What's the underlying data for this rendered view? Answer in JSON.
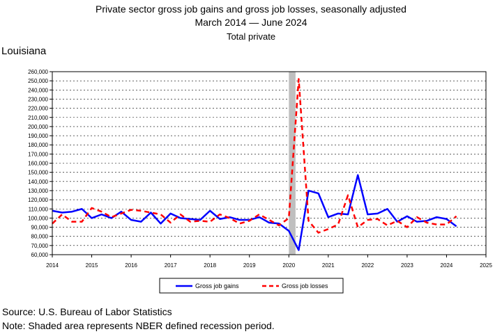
{
  "title": "Private sector gross job gains and gross job losses, seasonally adjusted",
  "date_range": "March 2014  — June 2024",
  "subtitle": "Total private",
  "region": "Louisiana",
  "source": "Source: U.S. Bureau of Labor Statistics",
  "note": "Note: Shaded area represents NBER defined recession period.",
  "colors": {
    "gains": "#0000ff",
    "losses": "#ff0000",
    "recession": "#bfbfbf"
  },
  "chart_data": {
    "type": "line",
    "xlim": [
      2014,
      2025
    ],
    "ylim": [
      60000,
      260000
    ],
    "x_ticks": [
      "2014",
      "2015",
      "2016",
      "2017",
      "2018",
      "2019",
      "2020",
      "2021",
      "2022",
      "2023",
      "2024",
      "2025"
    ],
    "y_ticks": [
      "60,000",
      "70,000",
      "80,000",
      "90,000",
      "100,000",
      "110,000",
      "120,000",
      "130,000",
      "140,000",
      "150,000",
      "160,000",
      "170,000",
      "180,000",
      "190,000",
      "200,000",
      "210,000",
      "220,000",
      "230,000",
      "240,000",
      "250,000",
      "260,000"
    ],
    "recession": [
      2020.0,
      2020.17
    ],
    "grid": "horizontal",
    "legend_position": "bottom",
    "x": [
      2014.0,
      2014.25,
      2014.5,
      2014.75,
      2015.0,
      2015.25,
      2015.5,
      2015.75,
      2016.0,
      2016.25,
      2016.5,
      2016.75,
      2017.0,
      2017.25,
      2017.5,
      2017.75,
      2018.0,
      2018.25,
      2018.5,
      2018.75,
      2019.0,
      2019.25,
      2019.5,
      2019.75,
      2020.0,
      2020.25,
      2020.5,
      2020.75,
      2021.0,
      2021.25,
      2021.5,
      2021.75,
      2022.0,
      2022.25,
      2022.5,
      2022.75,
      2023.0,
      2023.25,
      2023.5,
      2023.75,
      2024.0,
      2024.25
    ],
    "series": [
      {
        "name": "Gross job gains",
        "style": "solid",
        "values": [
          108000,
          106000,
          107000,
          110000,
          100000,
          104000,
          100000,
          107000,
          98000,
          96000,
          106000,
          94000,
          105000,
          100000,
          99000,
          98000,
          108000,
          99000,
          101000,
          98000,
          98000,
          101000,
          95000,
          94000,
          86000,
          65000,
          130000,
          127000,
          101000,
          105000,
          104000,
          147000,
          104000,
          105000,
          110000,
          96000,
          102000,
          96000,
          97000,
          101000,
          99000,
          91000
        ]
      },
      {
        "name": "Gross job losses",
        "style": "dashed",
        "values": [
          94000,
          104000,
          96000,
          96000,
          111000,
          107000,
          101000,
          105000,
          109000,
          108000,
          106000,
          104000,
          95000,
          104000,
          96000,
          97000,
          96000,
          104000,
          100000,
          94000,
          97000,
          104000,
          98000,
          92000,
          100000,
          252000,
          97000,
          84000,
          88000,
          93000,
          125000,
          90000,
          98000,
          99000,
          92000,
          97000,
          90000,
          101000,
          95000,
          93000,
          93000,
          102000
        ]
      }
    ]
  }
}
